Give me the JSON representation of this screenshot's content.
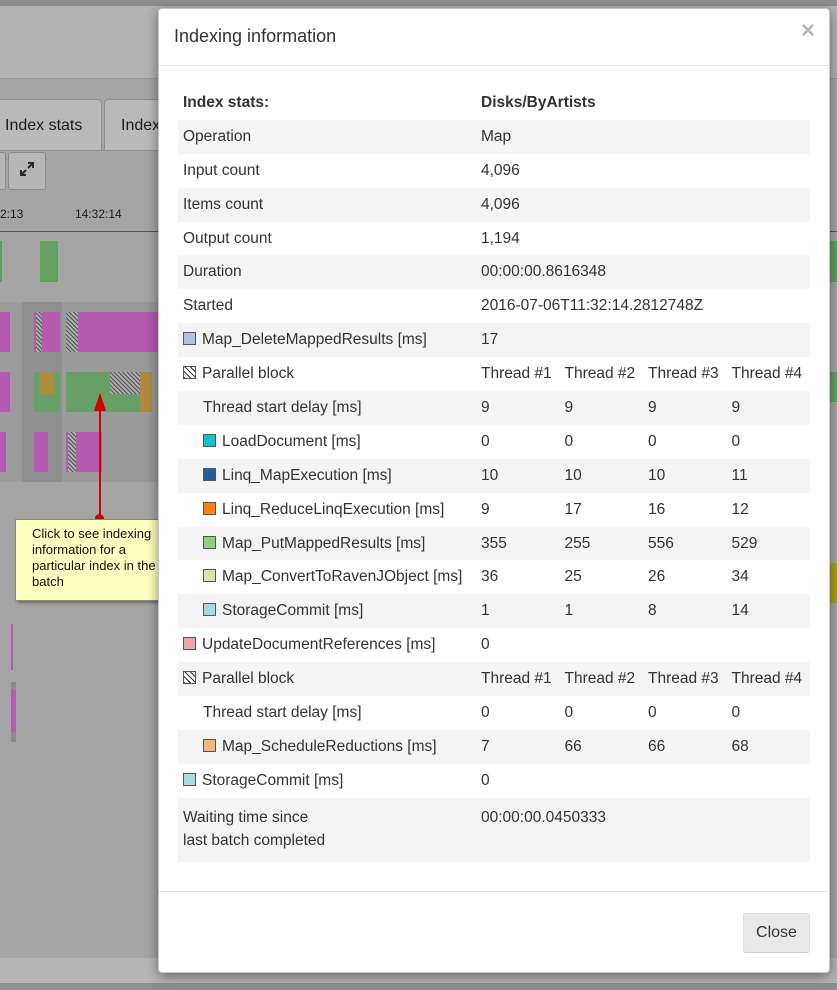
{
  "background": {
    "tabs": [
      {
        "label": "Index stats"
      },
      {
        "label": "Index"
      }
    ],
    "expand_button_icon": "expand-icon",
    "timeline_labels": [
      "2:13",
      "14:32:14"
    ],
    "callout_text": "Click to see indexing information for a particular index in the batch"
  },
  "modal": {
    "title": "Indexing information",
    "close_x": "×",
    "header": {
      "label": "Index stats:",
      "value": "Disks/ByArtists"
    },
    "summary_rows": [
      {
        "label": "Operation",
        "value": "Map"
      },
      {
        "label": "Input count",
        "value": "4,096"
      },
      {
        "label": "Items count",
        "value": "4,096"
      },
      {
        "label": "Output count",
        "value": "1,194"
      },
      {
        "label": "Duration",
        "value": "00:00:00.8616348"
      },
      {
        "label": "Started",
        "value": "2016-07-06T11:32:14.2812748Z"
      },
      {
        "label": "Map_DeleteMappedResults [ms]",
        "value": "17",
        "color": "#a9c4e4"
      }
    ],
    "parallel_block_1": {
      "label": "Parallel block",
      "threads": [
        "Thread #1",
        "Thread #2",
        "Thread #3",
        "Thread #4"
      ],
      "rows": [
        {
          "label": "Thread start delay [ms]",
          "values": [
            "9",
            "9",
            "9",
            "9"
          ]
        },
        {
          "label": "LoadDocument [ms]",
          "color": "#17becf",
          "values": [
            "0",
            "0",
            "0",
            "0"
          ]
        },
        {
          "label": "Linq_MapExecution [ms]",
          "color": "#1f5f9f",
          "values": [
            "10",
            "10",
            "10",
            "11"
          ]
        },
        {
          "label": "Linq_ReduceLinqExecution [ms]",
          "color": "#ff7f0e",
          "values": [
            "9",
            "17",
            "16",
            "12"
          ]
        },
        {
          "label": "Map_PutMappedResults [ms]",
          "color": "#8fd17b",
          "values": [
            "355",
            "255",
            "556",
            "529"
          ]
        },
        {
          "label": "Map_ConvertToRavenJObject [ms]",
          "color": "#dbe4a6",
          "values": [
            "36",
            "25",
            "26",
            "34"
          ]
        },
        {
          "label": "StorageCommit [ms]",
          "color": "#a6d6e8",
          "values": [
            "1",
            "1",
            "8",
            "14"
          ]
        }
      ]
    },
    "update_refs": {
      "label": "UpdateDocumentReferences [ms]",
      "value": "0",
      "color": "#f4a3a8"
    },
    "parallel_block_2": {
      "label": "Parallel block",
      "threads": [
        "Thread #1",
        "Thread #2",
        "Thread #3",
        "Thread #4"
      ],
      "rows": [
        {
          "label": "Thread start delay [ms]",
          "values": [
            "0",
            "0",
            "0",
            "0"
          ]
        },
        {
          "label": "Map_ScheduleReductions [ms]",
          "color": "#f7b57f",
          "values": [
            "7",
            "66",
            "66",
            "68"
          ]
        }
      ]
    },
    "storage_commit": {
      "label": "StorageCommit [ms]",
      "value": "0",
      "color": "#a6dce4"
    },
    "waiting": {
      "label_line1": "Waiting time since",
      "label_line2": "last batch completed",
      "value": "00:00:00.0450333"
    },
    "close_button": "Close"
  }
}
